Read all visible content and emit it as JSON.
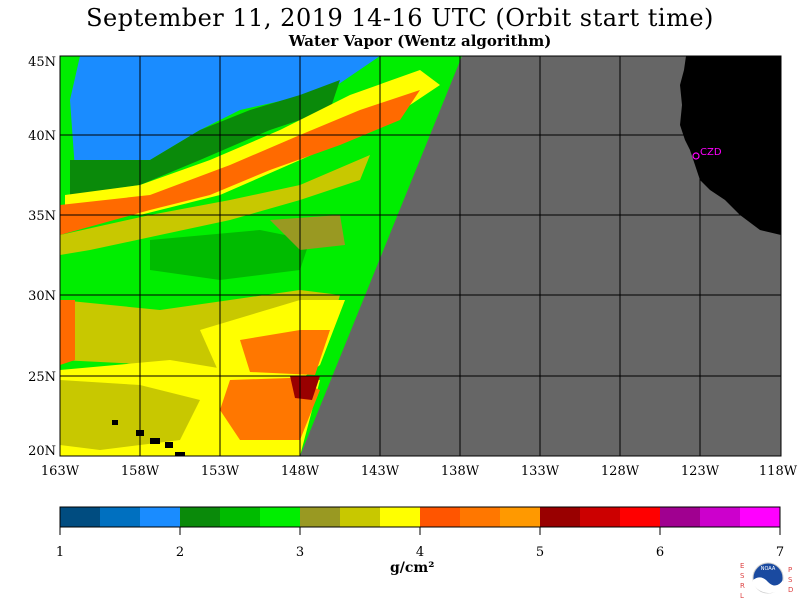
{
  "title": "September 11, 2019  14-16 UTC  (Orbit start time)",
  "subtitle": "Water Vapor (Wentz algorithm)",
  "map": {
    "lat_labels": [
      "45N",
      "40N",
      "35N",
      "30N",
      "25N",
      "20N"
    ],
    "lon_labels": [
      "163W",
      "158W",
      "153W",
      "148W",
      "143W",
      "138W",
      "133W",
      "128W",
      "123W",
      "118W"
    ],
    "station_label": "CZD",
    "colors": {
      "land": "#000000",
      "no_data": "#666666",
      "station": "#ff00ff",
      "grid": "#000000"
    }
  },
  "colorbar": {
    "min": 1,
    "max": 7,
    "tick_labels": [
      "1",
      "2",
      "3",
      "4",
      "5",
      "6",
      "7"
    ],
    "units": "g/cm²",
    "colors": [
      "#004c80",
      "#0070c0",
      "#1a8cff",
      "#0a8a0a",
      "#00bb00",
      "#00ee00",
      "#999922",
      "#c8c800",
      "#ffff00",
      "#ff5500",
      "#ff7700",
      "#ff9900",
      "#990000",
      "#cc0000",
      "#ff0000",
      "#a00090",
      "#cc00cc",
      "#ff00ff"
    ]
  },
  "logo": {
    "text": "NOAA",
    "left_letters": [
      "E",
      "S",
      "R",
      "L"
    ],
    "right_letters": [
      "P",
      "S",
      "D"
    ]
  }
}
